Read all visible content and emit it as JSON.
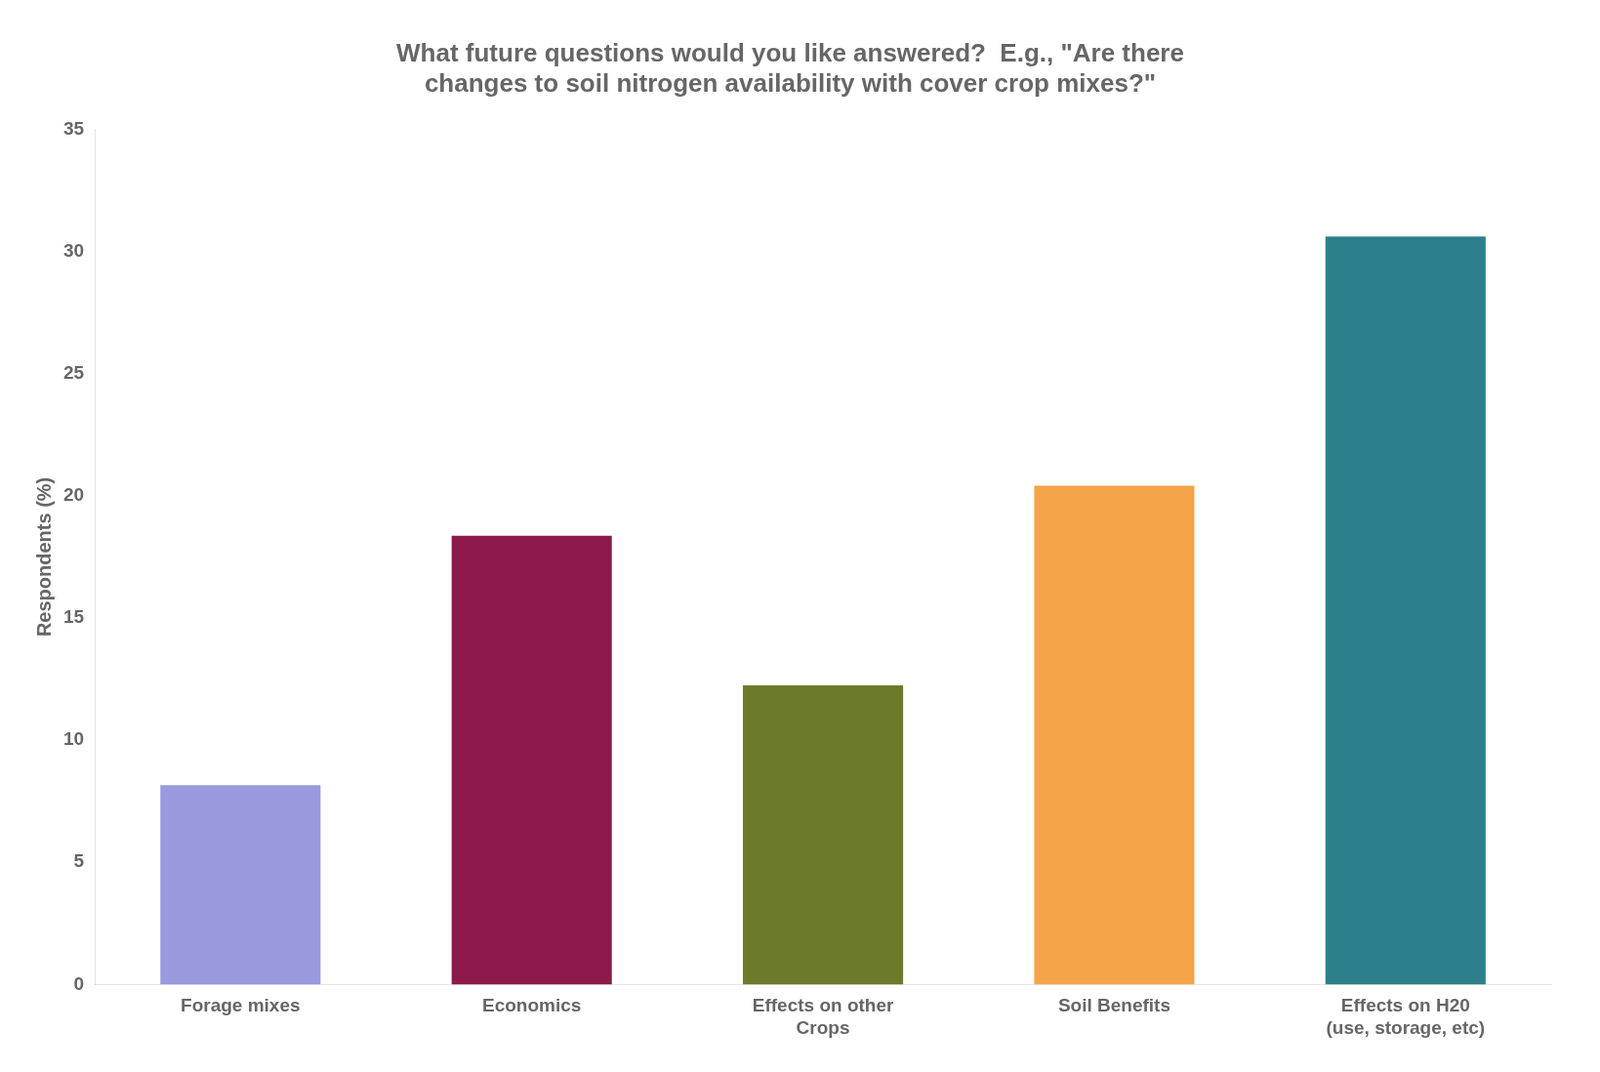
{
  "chart_data": {
    "type": "bar",
    "title": "What future questions would you like answered?  E.g., \"Are there\nchanges to soil nitrogen availability with cover crop mixes?\"",
    "ylabel": "Respondents (%)",
    "categories": [
      "Forage mixes",
      "Economics",
      "Effects on other\nCrops",
      "Soil Benefits",
      "Effects on H20\n(use, storage, etc)"
    ],
    "values": [
      8.16,
      18.37,
      12.24,
      20.41,
      30.61
    ],
    "colors": [
      "#9999dd",
      "#8B1A4A",
      "#6B7B2A",
      "#F5A44A",
      "#2E7F8C"
    ],
    "ylim": [
      0,
      35
    ],
    "yticks": [
      0,
      5,
      10,
      15,
      20,
      25,
      30,
      35
    ],
    "grid": false
  }
}
